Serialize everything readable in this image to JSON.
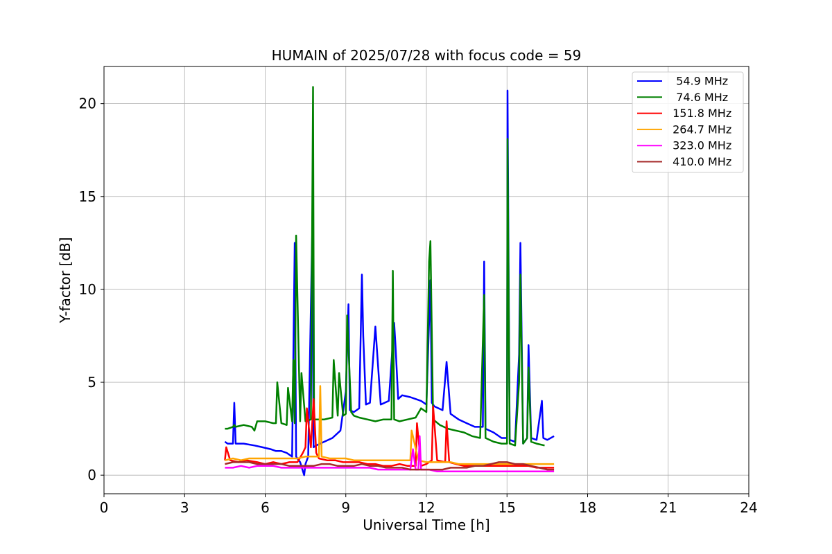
{
  "chart_data": {
    "type": "line",
    "title": "HUMAIN of 2025/07/28 with focus code = 59",
    "xlabel": "Universal Time [h]",
    "ylabel": "Y-factor [dB]",
    "xlim": [
      0,
      24
    ],
    "ylim": [
      -1,
      22
    ],
    "xticks": [
      0,
      3,
      6,
      9,
      12,
      15,
      18,
      21,
      24
    ],
    "yticks": [
      0,
      5,
      10,
      15,
      20
    ],
    "grid": true,
    "legend_position": "top-right",
    "series": [
      {
        "name": "  54.9 MHz",
        "color": "#0000ff",
        "x": [
          4.5,
          4.6,
          4.8,
          4.85,
          4.9,
          5.2,
          5.6,
          5.9,
          6.2,
          6.4,
          6.6,
          6.8,
          7.0,
          7.1,
          7.15,
          7.3,
          7.45,
          7.5,
          7.6,
          7.75,
          7.8,
          7.9,
          8.2,
          8.5,
          8.8,
          9.0,
          9.1,
          9.15,
          9.3,
          9.5,
          9.6,
          9.65,
          9.75,
          9.9,
          10.1,
          10.3,
          10.6,
          10.8,
          10.85,
          10.95,
          11.1,
          11.4,
          11.6,
          11.8,
          12.0,
          12.15,
          12.2,
          12.3,
          12.6,
          12.75,
          12.9,
          13.2,
          13.5,
          13.8,
          14.1,
          14.15,
          14.2,
          14.5,
          14.8,
          15.0,
          15.02,
          15.1,
          15.3,
          15.45,
          15.5,
          15.6,
          15.75,
          15.8,
          15.9,
          16.1,
          16.3,
          16.35,
          16.5,
          16.75
        ],
        "values": [
          1.8,
          1.7,
          1.7,
          3.9,
          1.7,
          1.7,
          1.6,
          1.5,
          1.4,
          1.3,
          1.3,
          1.2,
          1.0,
          12.5,
          1.0,
          0.7,
          0.0,
          0.6,
          1.0,
          13.0,
          1.5,
          1.6,
          1.8,
          2.0,
          2.4,
          4.5,
          9.2,
          3.5,
          3.4,
          3.6,
          10.8,
          7.5,
          3.8,
          3.9,
          8.0,
          3.8,
          4.0,
          8.2,
          7.0,
          4.1,
          4.3,
          4.2,
          4.1,
          4.0,
          3.8,
          10.5,
          3.9,
          3.7,
          3.5,
          6.1,
          3.3,
          3.0,
          2.8,
          2.6,
          2.6,
          11.5,
          2.5,
          2.3,
          2.0,
          2.0,
          20.7,
          1.9,
          1.8,
          6.5,
          12.5,
          1.7,
          2.0,
          7.0,
          2.0,
          1.9,
          4.0,
          2.0,
          1.9,
          2.1
        ]
      },
      {
        "name": "  74.6 MHz",
        "color": "#008000",
        "x": [
          4.5,
          4.6,
          4.8,
          4.85,
          4.9,
          5.2,
          5.5,
          5.6,
          5.7,
          6.0,
          6.3,
          6.4,
          6.45,
          6.6,
          6.8,
          6.85,
          7.0,
          7.05,
          7.1,
          7.15,
          7.3,
          7.35,
          7.5,
          7.7,
          7.78,
          7.82,
          8.0,
          8.2,
          8.5,
          8.55,
          8.7,
          8.75,
          8.9,
          9.0,
          9.05,
          9.2,
          9.3,
          9.5,
          9.8,
          10.1,
          10.4,
          10.6,
          10.7,
          10.75,
          10.8,
          11.0,
          11.3,
          11.6,
          11.8,
          12.0,
          12.1,
          12.15,
          12.25,
          12.5,
          12.8,
          13.1,
          13.4,
          13.7,
          14.0,
          14.15,
          14.2,
          14.5,
          14.8,
          15.0,
          15.02,
          15.1,
          15.3,
          15.45,
          15.5,
          15.6,
          15.75,
          15.8,
          15.9,
          16.1,
          16.4
        ],
        "values": [
          2.5,
          2.5,
          2.6,
          2.7,
          2.6,
          2.7,
          2.6,
          2.4,
          2.9,
          2.9,
          2.8,
          2.8,
          5.0,
          2.8,
          2.7,
          4.7,
          2.9,
          6.2,
          2.8,
          12.9,
          2.9,
          5.5,
          2.9,
          3.0,
          20.9,
          3.0,
          3.0,
          3.0,
          3.1,
          6.2,
          3.2,
          5.5,
          3.2,
          3.3,
          8.6,
          3.4,
          3.2,
          3.1,
          3.0,
          2.9,
          3.0,
          3.0,
          3.0,
          11.0,
          3.0,
          2.9,
          3.0,
          3.1,
          3.6,
          3.4,
          11.5,
          12.6,
          3.0,
          2.7,
          2.5,
          2.4,
          2.3,
          2.1,
          2.0,
          9.7,
          2.0,
          1.8,
          1.7,
          1.7,
          18.1,
          1.7,
          1.6,
          5.0,
          10.8,
          1.7,
          2.0,
          5.8,
          1.8,
          1.7,
          1.6
        ]
      },
      {
        "name": " 151.8 MHz",
        "color": "#ff0000",
        "x": [
          4.5,
          4.55,
          4.7,
          5.0,
          5.3,
          5.7,
          6.0,
          6.3,
          6.6,
          6.9,
          7.2,
          7.4,
          7.5,
          7.55,
          7.7,
          7.8,
          7.9,
          8.0,
          8.3,
          8.6,
          8.9,
          9.2,
          9.5,
          9.8,
          10.1,
          10.4,
          10.7,
          11.0,
          11.3,
          11.6,
          11.65,
          11.8,
          12.0,
          12.2,
          12.25,
          12.4,
          12.7,
          12.75,
          12.85,
          13.1,
          13.4,
          13.7,
          14.0,
          14.3,
          14.6,
          14.9,
          15.2,
          15.5,
          15.8,
          16.1,
          16.4,
          16.75
        ],
        "values": [
          0.8,
          1.5,
          0.8,
          0.7,
          0.8,
          0.7,
          0.6,
          0.7,
          0.6,
          0.7,
          0.7,
          1.2,
          1.5,
          3.6,
          1.5,
          4.1,
          1.2,
          0.9,
          0.8,
          0.8,
          0.7,
          0.7,
          0.7,
          0.6,
          0.6,
          0.5,
          0.5,
          0.6,
          0.5,
          0.5,
          2.8,
          0.5,
          0.6,
          0.8,
          3.7,
          0.8,
          0.7,
          2.9,
          0.7,
          0.6,
          0.5,
          0.5,
          0.5,
          0.5,
          0.5,
          0.5,
          0.5,
          0.5,
          0.5,
          0.4,
          0.4,
          0.4
        ]
      },
      {
        "name": " 264.7 MHz",
        "color": "#ffa500",
        "x": [
          4.5,
          4.8,
          5.1,
          5.4,
          5.7,
          6.0,
          6.3,
          6.6,
          6.9,
          7.2,
          7.5,
          7.8,
          8.0,
          8.05,
          8.1,
          8.4,
          8.7,
          9.0,
          9.3,
          9.6,
          9.9,
          10.2,
          10.5,
          10.8,
          11.1,
          11.4,
          11.45,
          11.7,
          12.0,
          12.3,
          12.6,
          12.9,
          13.2,
          13.5,
          13.8,
          14.1,
          14.4,
          14.7,
          15.0,
          15.3,
          15.6,
          15.9,
          16.2,
          16.5,
          16.75
        ],
        "values": [
          0.8,
          0.9,
          0.8,
          0.9,
          0.9,
          0.9,
          0.9,
          0.9,
          0.9,
          0.9,
          1.0,
          1.0,
          1.0,
          4.8,
          1.0,
          0.9,
          0.9,
          0.9,
          0.8,
          0.8,
          0.8,
          0.8,
          0.8,
          0.8,
          0.8,
          0.8,
          2.4,
          0.8,
          0.7,
          0.7,
          0.7,
          0.7,
          0.6,
          0.6,
          0.6,
          0.6,
          0.6,
          0.6,
          0.6,
          0.6,
          0.6,
          0.6,
          0.6,
          0.6,
          0.6
        ]
      },
      {
        "name": " 323.0 MHz",
        "color": "#ff00ff",
        "x": [
          4.5,
          4.8,
          5.1,
          5.4,
          5.7,
          6.0,
          6.3,
          6.6,
          6.9,
          7.2,
          7.5,
          7.8,
          8.1,
          8.4,
          8.7,
          9.0,
          9.3,
          9.6,
          9.9,
          10.2,
          10.5,
          10.8,
          11.1,
          11.4,
          11.5,
          11.6,
          11.7,
          11.75,
          11.8,
          12.1,
          12.4,
          12.7,
          13.0,
          13.3,
          13.6,
          13.9,
          14.2,
          14.5,
          14.8,
          15.1,
          15.4,
          15.7,
          16.0,
          16.3,
          16.75
        ],
        "values": [
          0.4,
          0.4,
          0.5,
          0.4,
          0.5,
          0.5,
          0.5,
          0.4,
          0.4,
          0.4,
          0.4,
          0.4,
          0.4,
          0.4,
          0.4,
          0.4,
          0.4,
          0.4,
          0.4,
          0.3,
          0.3,
          0.3,
          0.3,
          0.3,
          1.4,
          0.3,
          0.3,
          2.1,
          0.3,
          0.3,
          0.2,
          0.2,
          0.2,
          0.2,
          0.2,
          0.2,
          0.2,
          0.2,
          0.2,
          0.2,
          0.2,
          0.2,
          0.2,
          0.2,
          0.2
        ]
      },
      {
        "name": " 410.0 MHz",
        "color": "#a52a2a",
        "x": [
          4.5,
          4.8,
          5.1,
          5.4,
          5.7,
          6.0,
          6.3,
          6.6,
          6.9,
          7.2,
          7.5,
          7.8,
          8.1,
          8.4,
          8.7,
          9.0,
          9.3,
          9.6,
          9.9,
          10.2,
          10.5,
          10.8,
          11.1,
          11.4,
          11.7,
          12.0,
          12.3,
          12.6,
          12.9,
          13.2,
          13.5,
          13.8,
          14.1,
          14.4,
          14.7,
          15.0,
          15.3,
          15.6,
          15.9,
          16.2,
          16.5,
          16.75
        ],
        "values": [
          0.6,
          0.7,
          0.7,
          0.7,
          0.6,
          0.6,
          0.6,
          0.6,
          0.5,
          0.5,
          0.5,
          0.5,
          0.6,
          0.6,
          0.5,
          0.5,
          0.5,
          0.6,
          0.5,
          0.5,
          0.4,
          0.4,
          0.4,
          0.3,
          0.3,
          0.3,
          0.3,
          0.3,
          0.4,
          0.4,
          0.4,
          0.5,
          0.5,
          0.6,
          0.7,
          0.7,
          0.6,
          0.6,
          0.5,
          0.4,
          0.3,
          0.3
        ]
      }
    ]
  }
}
